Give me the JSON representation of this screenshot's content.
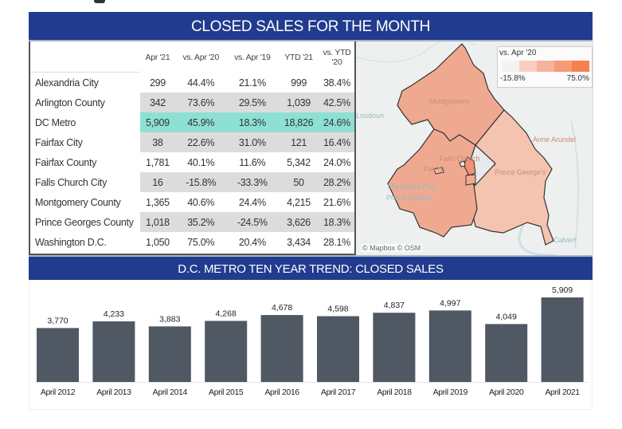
{
  "header": {
    "title": "CLOSED SALES FOR THE MONTH"
  },
  "table": {
    "columns": [
      "",
      "Apr '21",
      "vs. Apr '20",
      "vs. Apr '19",
      "YTD '21",
      "vs. YTD '20"
    ],
    "rows": [
      {
        "name": "Alexandria City",
        "apr21": "299",
        "vs_apr20": "44.4%",
        "vs_apr19": "21.1%",
        "ytd21": "999",
        "vs_ytd20": "38.4%"
      },
      {
        "name": "Arlington County",
        "apr21": "342",
        "vs_apr20": "73.6%",
        "vs_apr19": "29.5%",
        "ytd21": "1,039",
        "vs_ytd20": "42.5%"
      },
      {
        "name": "DC Metro",
        "apr21": "5,909",
        "vs_apr20": "45.9%",
        "vs_apr19": "18.3%",
        "ytd21": "18,826",
        "vs_ytd20": "24.6%"
      },
      {
        "name": "Fairfax City",
        "apr21": "38",
        "vs_apr20": "22.6%",
        "vs_apr19": "31.0%",
        "ytd21": "121",
        "vs_ytd20": "16.4%"
      },
      {
        "name": "Fairfax County",
        "apr21": "1,781",
        "vs_apr20": "40.1%",
        "vs_apr19": "11.6%",
        "ytd21": "5,342",
        "vs_ytd20": "24.0%"
      },
      {
        "name": "Falls Church City",
        "apr21": "16",
        "vs_apr20": "-15.8%",
        "vs_apr19": "-33.3%",
        "ytd21": "50",
        "vs_ytd20": "28.2%"
      },
      {
        "name": "Montgomery County",
        "apr21": "1,365",
        "vs_apr20": "40.6%",
        "vs_apr19": "24.4%",
        "ytd21": "4,215",
        "vs_ytd20": "21.6%"
      },
      {
        "name": "Prince Georges County",
        "apr21": "1,018",
        "vs_apr20": "35.2%",
        "vs_apr19": "-24.5%",
        "ytd21": "3,626",
        "vs_ytd20": "18.3%"
      },
      {
        "name": "Washington D.C.",
        "apr21": "1,050",
        "vs_apr20": "75.0%",
        "vs_apr19": "20.4%",
        "ytd21": "3,434",
        "vs_ytd20": "28.1%"
      }
    ]
  },
  "map": {
    "legend_title": "vs. Apr '20",
    "legend_min": "-15.8%",
    "legend_max": "75.0%",
    "legend_colors": [
      "#f3f3f3",
      "#f8cfc0",
      "#f5b39c",
      "#f69a78",
      "#f7804f"
    ],
    "labels": [
      "Montgomery",
      "Loudoun",
      "Anne Arundel",
      "Falls Church",
      "Fairfax",
      "Prince George's",
      "Manassas Park",
      "Prince William",
      "Calvert"
    ],
    "attribution": "© Mapbox © OSM"
  },
  "chart_data": {
    "type": "bar",
    "title": "D.C. METRO TEN YEAR TREND: CLOSED SALES",
    "categories": [
      "April 2012",
      "April 2013",
      "April 2014",
      "April 2015",
      "April 2016",
      "April 2017",
      "April 2018",
      "April 2019",
      "April 2020",
      "April 2021"
    ],
    "values": [
      3770,
      4233,
      3883,
      4268,
      4678,
      4598,
      4837,
      4997,
      4049,
      5909
    ],
    "value_labels": [
      "3,770",
      "4,233",
      "3,883",
      "4,268",
      "4,678",
      "4,598",
      "4,837",
      "4,997",
      "4,049",
      "5,909"
    ],
    "xlabel": "",
    "ylabel": "",
    "ylim": [
      0,
      5909
    ],
    "grid": false,
    "bar_color": "#4f5863"
  }
}
